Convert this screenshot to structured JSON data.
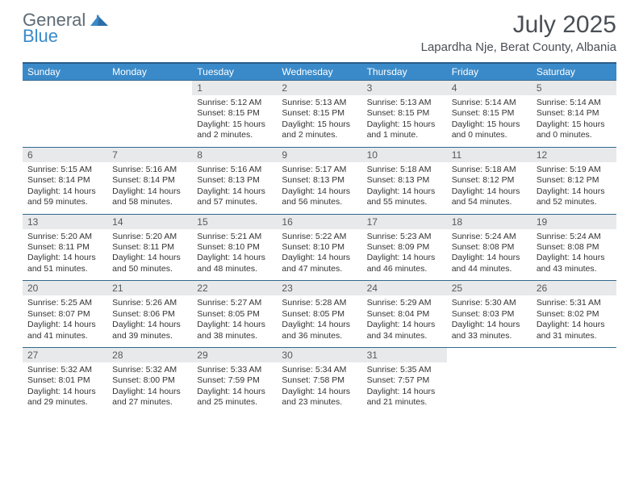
{
  "brand": {
    "general": "General",
    "blue": "Blue"
  },
  "title": {
    "month": "July 2025",
    "location": "Lapardha Nje, Berat County, Albania"
  },
  "colors": {
    "header_bg": "#3a8ac9",
    "header_border": "#295e8a",
    "week_border": "#32688f",
    "daynum_bg": "#e8e9ea",
    "text": "#333333"
  },
  "dayHeaders": [
    "Sunday",
    "Monday",
    "Tuesday",
    "Wednesday",
    "Thursday",
    "Friday",
    "Saturday"
  ],
  "weeks": [
    [
      null,
      null,
      {
        "n": "1",
        "sunrise": "Sunrise: 5:12 AM",
        "sunset": "Sunset: 8:15 PM",
        "day1": "Daylight: 15 hours",
        "day2": "and 2 minutes."
      },
      {
        "n": "2",
        "sunrise": "Sunrise: 5:13 AM",
        "sunset": "Sunset: 8:15 PM",
        "day1": "Daylight: 15 hours",
        "day2": "and 2 minutes."
      },
      {
        "n": "3",
        "sunrise": "Sunrise: 5:13 AM",
        "sunset": "Sunset: 8:15 PM",
        "day1": "Daylight: 15 hours",
        "day2": "and 1 minute."
      },
      {
        "n": "4",
        "sunrise": "Sunrise: 5:14 AM",
        "sunset": "Sunset: 8:15 PM",
        "day1": "Daylight: 15 hours",
        "day2": "and 0 minutes."
      },
      {
        "n": "5",
        "sunrise": "Sunrise: 5:14 AM",
        "sunset": "Sunset: 8:14 PM",
        "day1": "Daylight: 15 hours",
        "day2": "and 0 minutes."
      }
    ],
    [
      {
        "n": "6",
        "sunrise": "Sunrise: 5:15 AM",
        "sunset": "Sunset: 8:14 PM",
        "day1": "Daylight: 14 hours",
        "day2": "and 59 minutes."
      },
      {
        "n": "7",
        "sunrise": "Sunrise: 5:16 AM",
        "sunset": "Sunset: 8:14 PM",
        "day1": "Daylight: 14 hours",
        "day2": "and 58 minutes."
      },
      {
        "n": "8",
        "sunrise": "Sunrise: 5:16 AM",
        "sunset": "Sunset: 8:13 PM",
        "day1": "Daylight: 14 hours",
        "day2": "and 57 minutes."
      },
      {
        "n": "9",
        "sunrise": "Sunrise: 5:17 AM",
        "sunset": "Sunset: 8:13 PM",
        "day1": "Daylight: 14 hours",
        "day2": "and 56 minutes."
      },
      {
        "n": "10",
        "sunrise": "Sunrise: 5:18 AM",
        "sunset": "Sunset: 8:13 PM",
        "day1": "Daylight: 14 hours",
        "day2": "and 55 minutes."
      },
      {
        "n": "11",
        "sunrise": "Sunrise: 5:18 AM",
        "sunset": "Sunset: 8:12 PM",
        "day1": "Daylight: 14 hours",
        "day2": "and 54 minutes."
      },
      {
        "n": "12",
        "sunrise": "Sunrise: 5:19 AM",
        "sunset": "Sunset: 8:12 PM",
        "day1": "Daylight: 14 hours",
        "day2": "and 52 minutes."
      }
    ],
    [
      {
        "n": "13",
        "sunrise": "Sunrise: 5:20 AM",
        "sunset": "Sunset: 8:11 PM",
        "day1": "Daylight: 14 hours",
        "day2": "and 51 minutes."
      },
      {
        "n": "14",
        "sunrise": "Sunrise: 5:20 AM",
        "sunset": "Sunset: 8:11 PM",
        "day1": "Daylight: 14 hours",
        "day2": "and 50 minutes."
      },
      {
        "n": "15",
        "sunrise": "Sunrise: 5:21 AM",
        "sunset": "Sunset: 8:10 PM",
        "day1": "Daylight: 14 hours",
        "day2": "and 48 minutes."
      },
      {
        "n": "16",
        "sunrise": "Sunrise: 5:22 AM",
        "sunset": "Sunset: 8:10 PM",
        "day1": "Daylight: 14 hours",
        "day2": "and 47 minutes."
      },
      {
        "n": "17",
        "sunrise": "Sunrise: 5:23 AM",
        "sunset": "Sunset: 8:09 PM",
        "day1": "Daylight: 14 hours",
        "day2": "and 46 minutes."
      },
      {
        "n": "18",
        "sunrise": "Sunrise: 5:24 AM",
        "sunset": "Sunset: 8:08 PM",
        "day1": "Daylight: 14 hours",
        "day2": "and 44 minutes."
      },
      {
        "n": "19",
        "sunrise": "Sunrise: 5:24 AM",
        "sunset": "Sunset: 8:08 PM",
        "day1": "Daylight: 14 hours",
        "day2": "and 43 minutes."
      }
    ],
    [
      {
        "n": "20",
        "sunrise": "Sunrise: 5:25 AM",
        "sunset": "Sunset: 8:07 PM",
        "day1": "Daylight: 14 hours",
        "day2": "and 41 minutes."
      },
      {
        "n": "21",
        "sunrise": "Sunrise: 5:26 AM",
        "sunset": "Sunset: 8:06 PM",
        "day1": "Daylight: 14 hours",
        "day2": "and 39 minutes."
      },
      {
        "n": "22",
        "sunrise": "Sunrise: 5:27 AM",
        "sunset": "Sunset: 8:05 PM",
        "day1": "Daylight: 14 hours",
        "day2": "and 38 minutes."
      },
      {
        "n": "23",
        "sunrise": "Sunrise: 5:28 AM",
        "sunset": "Sunset: 8:05 PM",
        "day1": "Daylight: 14 hours",
        "day2": "and 36 minutes."
      },
      {
        "n": "24",
        "sunrise": "Sunrise: 5:29 AM",
        "sunset": "Sunset: 8:04 PM",
        "day1": "Daylight: 14 hours",
        "day2": "and 34 minutes."
      },
      {
        "n": "25",
        "sunrise": "Sunrise: 5:30 AM",
        "sunset": "Sunset: 8:03 PM",
        "day1": "Daylight: 14 hours",
        "day2": "and 33 minutes."
      },
      {
        "n": "26",
        "sunrise": "Sunrise: 5:31 AM",
        "sunset": "Sunset: 8:02 PM",
        "day1": "Daylight: 14 hours",
        "day2": "and 31 minutes."
      }
    ],
    [
      {
        "n": "27",
        "sunrise": "Sunrise: 5:32 AM",
        "sunset": "Sunset: 8:01 PM",
        "day1": "Daylight: 14 hours",
        "day2": "and 29 minutes."
      },
      {
        "n": "28",
        "sunrise": "Sunrise: 5:32 AM",
        "sunset": "Sunset: 8:00 PM",
        "day1": "Daylight: 14 hours",
        "day2": "and 27 minutes."
      },
      {
        "n": "29",
        "sunrise": "Sunrise: 5:33 AM",
        "sunset": "Sunset: 7:59 PM",
        "day1": "Daylight: 14 hours",
        "day2": "and 25 minutes."
      },
      {
        "n": "30",
        "sunrise": "Sunrise: 5:34 AM",
        "sunset": "Sunset: 7:58 PM",
        "day1": "Daylight: 14 hours",
        "day2": "and 23 minutes."
      },
      {
        "n": "31",
        "sunrise": "Sunrise: 5:35 AM",
        "sunset": "Sunset: 7:57 PM",
        "day1": "Daylight: 14 hours",
        "day2": "and 21 minutes."
      },
      null,
      null
    ]
  ]
}
